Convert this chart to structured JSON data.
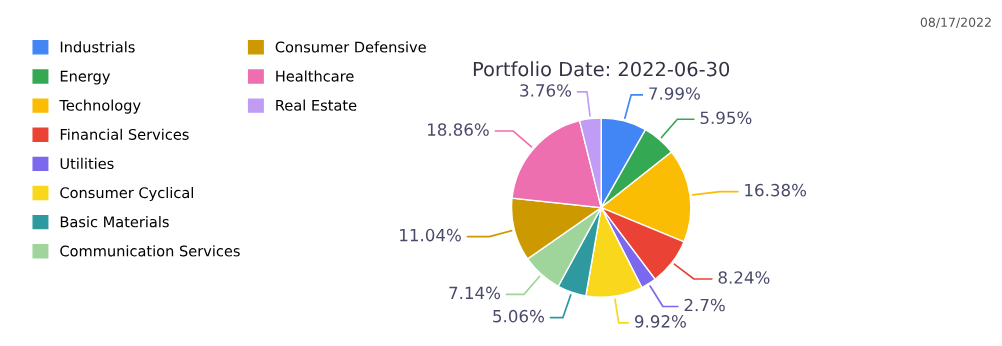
{
  "chart_data": {
    "type": "pie",
    "title": "Portfolio Date: 2022-06-30",
    "categories": [
      "Industrials",
      "Energy",
      "Technology",
      "Financial Services",
      "Utilities",
      "Consumer Cyclical",
      "Basic Materials",
      "Communication Services",
      "Consumer Defensive",
      "Healthcare",
      "Real Estate"
    ],
    "values": [
      7.99,
      5.95,
      16.38,
      8.24,
      2.7,
      9.92,
      5.06,
      7.14,
      11.04,
      18.86,
      3.76
    ],
    "value_labels": [
      "7.99%",
      "5.95%",
      "16.38%",
      "8.24%",
      "2.7%",
      "9.92%",
      "5.06%",
      "7.14%",
      "11.04%",
      "18.86%",
      "3.76%"
    ],
    "colors": [
      "#4285f4",
      "#34a853",
      "#fbbc04",
      "#ea4335",
      "#7b68ee",
      "#f9d71c",
      "#2e9aa0",
      "#9fd49a",
      "#cc9900",
      "#ee6fb0",
      "#c09cf5"
    ],
    "legend": "left",
    "annotations": [
      "08/17/2022"
    ]
  }
}
